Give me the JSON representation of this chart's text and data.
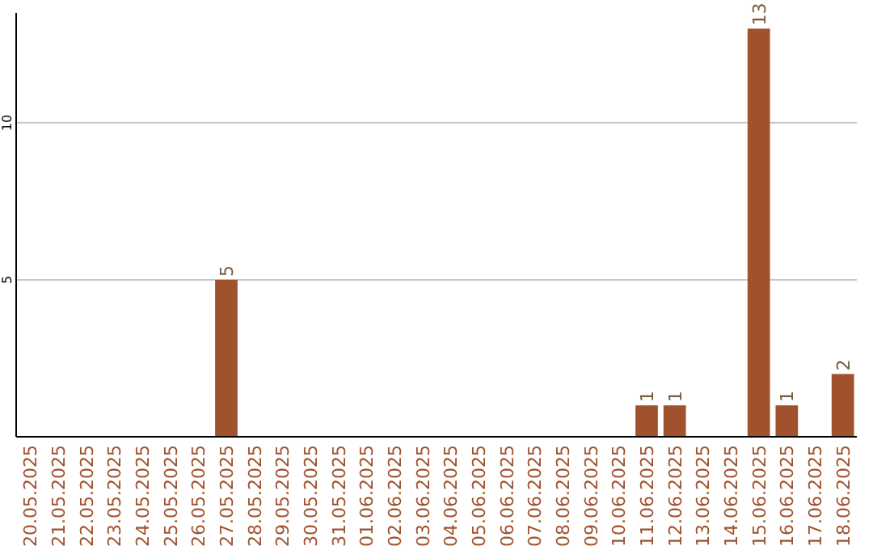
{
  "chart_data": {
    "type": "bar",
    "categories": [
      "20.05.2025",
      "21.05.2025",
      "22.05.2025",
      "23.05.2025",
      "24.05.2025",
      "25.05.2025",
      "26.05.2025",
      "27.05.2025",
      "28.05.2025",
      "29.05.2025",
      "30.05.2025",
      "31.05.2025",
      "01.06.2025",
      "02.06.2025",
      "03.06.2025",
      "04.06.2025",
      "05.06.2025",
      "06.06.2025",
      "07.06.2025",
      "08.06.2025",
      "09.06.2025",
      "10.06.2025",
      "11.06.2025",
      "12.06.2025",
      "13.06.2025",
      "14.06.2025",
      "15.06.2025",
      "16.06.2025",
      "17.06.2025",
      "18.06.2025"
    ],
    "values": [
      0,
      0,
      0,
      0,
      0,
      0,
      0,
      5,
      0,
      0,
      0,
      0,
      0,
      0,
      0,
      0,
      0,
      0,
      0,
      0,
      0,
      0,
      1,
      1,
      0,
      0,
      13,
      1,
      0,
      2
    ],
    "value_labels": [
      null,
      null,
      null,
      null,
      null,
      null,
      null,
      "5",
      null,
      null,
      null,
      null,
      null,
      null,
      null,
      null,
      null,
      null,
      null,
      null,
      null,
      null,
      "1",
      "1",
      null,
      null,
      "13",
      "1",
      null,
      "2"
    ],
    "color": "#a0522d",
    "ylim": [
      0,
      13.5
    ],
    "yticks": [
      5,
      10
    ],
    "grid": "y"
  }
}
